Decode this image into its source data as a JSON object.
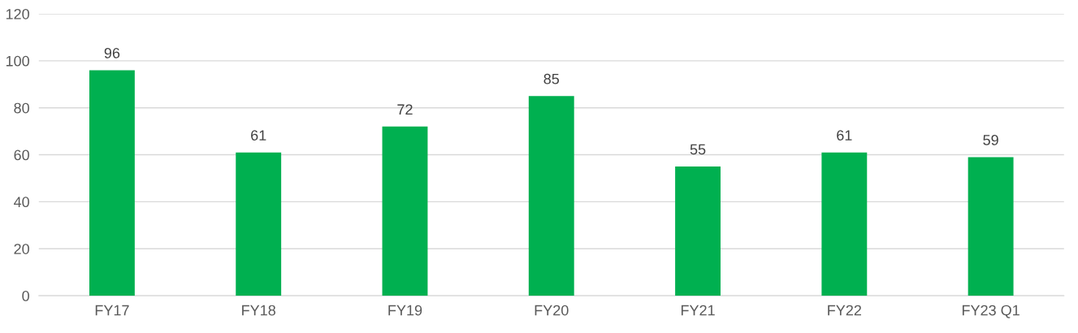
{
  "chart_data": {
    "type": "bar",
    "categories": [
      "FY17",
      "FY18",
      "FY19",
      "FY20",
      "FY21",
      "FY22",
      "FY23 Q1"
    ],
    "values": [
      96,
      61,
      72,
      85,
      55,
      61,
      59
    ],
    "color": "#00b050",
    "ylim": [
      0,
      120
    ],
    "yticks": [
      0,
      20,
      40,
      60,
      80,
      100,
      120
    ],
    "grid": "y",
    "data_labels": true,
    "legend": false
  }
}
